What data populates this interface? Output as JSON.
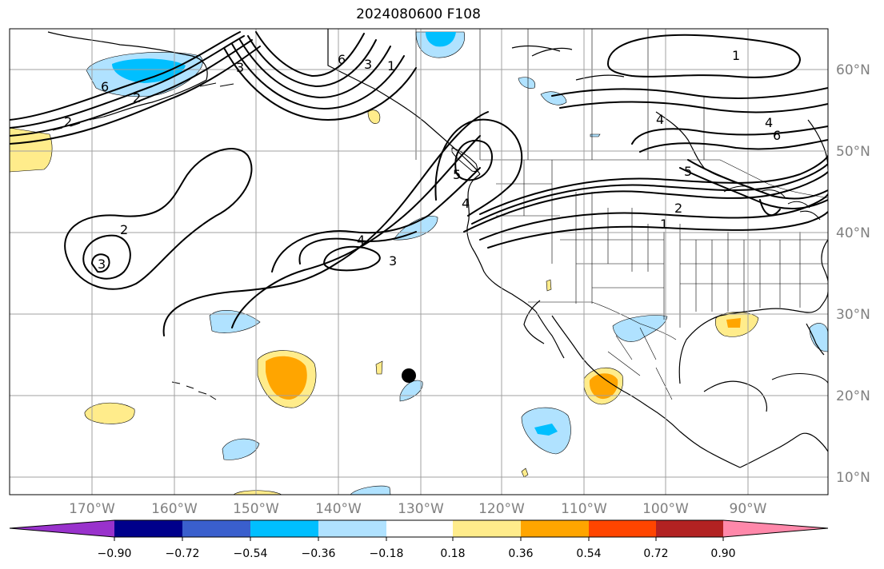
{
  "title": "2024080600 F108",
  "lon_labels": [
    "170°W",
    "160°W",
    "150°W",
    "140°W",
    "130°W",
    "120°W",
    "110°W",
    "100°W",
    "90°W"
  ],
  "lat_labels": [
    "60°N",
    "50°N",
    "40°N",
    "30°N",
    "20°N",
    "10°N"
  ],
  "colorbar": {
    "colors": [
      "#9932cc",
      "#00008b",
      "#3a5fcd",
      "#00bfff",
      "#b0e2ff",
      "#ffffff",
      "#ffec8b",
      "#ffa500",
      "#ff4500",
      "#b22222",
      "#ff88aa"
    ],
    "tick_labels": [
      "−0.90",
      "−0.72",
      "−0.54",
      "−0.36",
      "−0.18",
      "0.18",
      "0.36",
      "0.54",
      "0.72",
      "0.90"
    ]
  },
  "contour_labels": [
    "2",
    "3",
    "4",
    "6",
    "2",
    "3",
    "1",
    "1",
    "2",
    "4",
    "6",
    "5",
    "2",
    "1",
    "3",
    "4",
    "6",
    "3",
    "5",
    "4"
  ],
  "colors": {
    "land_line": "#000000",
    "grid": "#a0a0a0",
    "light_blue": "#b0e2ff",
    "deep_sky_blue": "#00bfff",
    "light_gold": "#ffec8b",
    "orange": "#ffa500"
  }
}
